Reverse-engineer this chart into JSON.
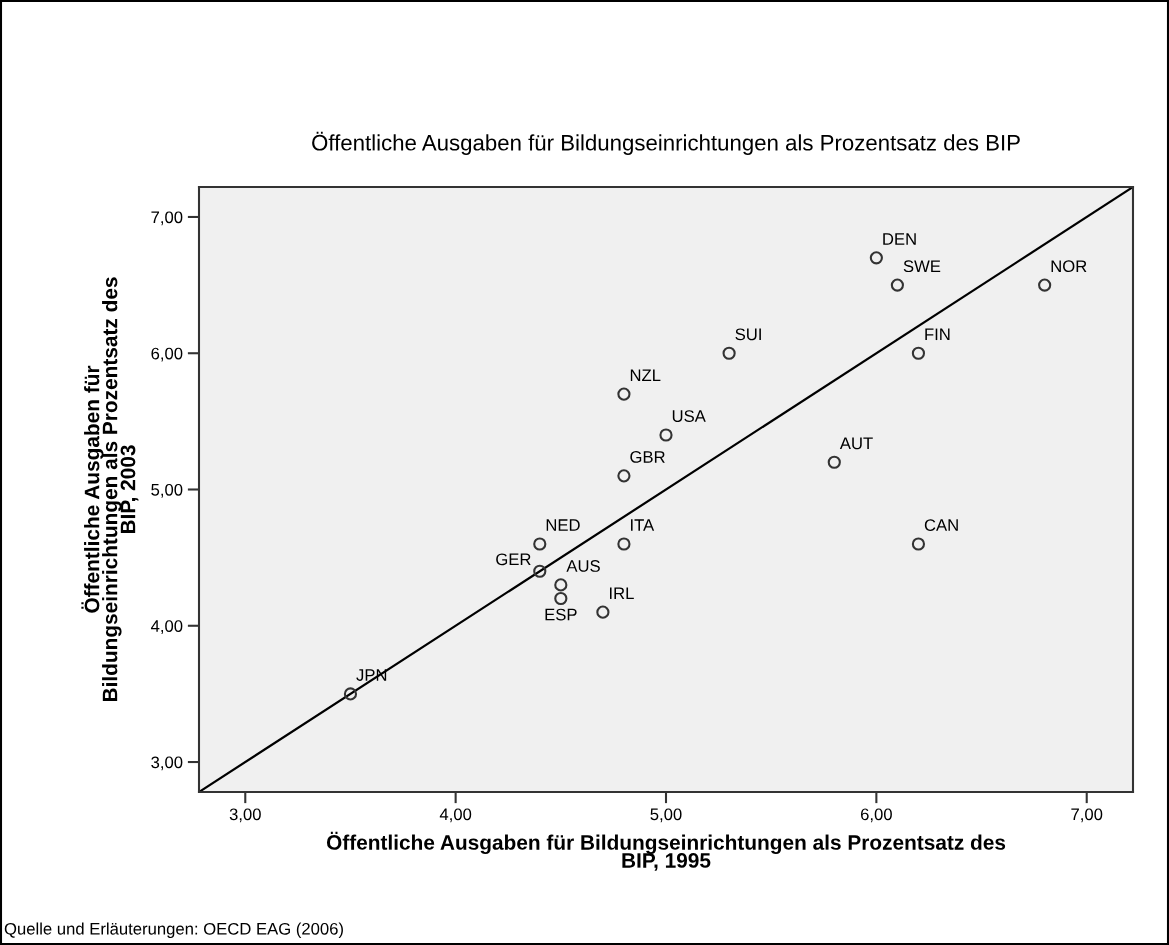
{
  "chart_data": {
    "type": "scatter",
    "title": "Öffentliche Ausgaben für Bildungseinrichtungen als Prozentsatz des BIP",
    "xlabel": "Öffentliche Ausgaben für Bildungseinrichtungen als Prozentsatz des\nBIP, 1995",
    "ylabel": "Öffentliche Ausgaben für\nBildungseinrichtungen als Prozentsatz des\nBIP, 2003",
    "series": [
      {
        "color": "#333333",
        "marker": "circle",
        "x": [
          6.0,
          6.1,
          6.8,
          5.3,
          6.2,
          4.8,
          5.0,
          4.8,
          5.8,
          6.2,
          4.8,
          4.4,
          4.4,
          4.5,
          4.5,
          4.7,
          3.5
        ],
        "values": [
          6.7,
          6.5,
          6.5,
          6.0,
          6.0,
          5.7,
          5.4,
          5.1,
          5.2,
          4.6,
          4.6,
          4.6,
          4.4,
          4.3,
          4.2,
          4.1,
          3.5
        ]
      },
      {
        "type": "line",
        "color": "#000000",
        "line_style": "solid",
        "x": [
          2.78,
          7.22
        ],
        "values": [
          2.78,
          7.22
        ]
      }
    ],
    "annotations": [
      {
        "text": "DEN",
        "x": 6.0,
        "y": 6.7
      },
      {
        "text": "SWE",
        "x": 6.1,
        "y": 6.5
      },
      {
        "text": "NOR",
        "x": 6.8,
        "y": 6.5
      },
      {
        "text": "SUI",
        "x": 5.3,
        "y": 6.0
      },
      {
        "text": "FIN",
        "x": 6.2,
        "y": 6.0
      },
      {
        "text": "NZL",
        "x": 4.8,
        "y": 5.7
      },
      {
        "text": "USA",
        "x": 5.0,
        "y": 5.4
      },
      {
        "text": "GBR",
        "x": 4.8,
        "y": 5.1
      },
      {
        "text": "AUT",
        "x": 5.8,
        "y": 5.2
      },
      {
        "text": "CAN",
        "x": 6.2,
        "y": 4.6
      },
      {
        "text": "ITA",
        "x": 4.8,
        "y": 4.6
      },
      {
        "text": "NED",
        "x": 4.4,
        "y": 4.6
      },
      {
        "text": "GER",
        "x": 4.4,
        "y": 4.4
      },
      {
        "text": "AUS",
        "x": 4.5,
        "y": 4.3
      },
      {
        "text": "ESP",
        "x": 4.5,
        "y": 4.2
      },
      {
        "text": "IRL",
        "x": 4.7,
        "y": 4.1
      },
      {
        "text": "JPN",
        "x": 3.5,
        "y": 3.5
      },
      "Quelle und Erläuterungen: OECD EAG (2006)"
    ],
    "xlim": [
      2.78,
      7.22
    ],
    "ylim": [
      2.78,
      7.22
    ],
    "xticks": [
      {
        "value": 3,
        "label": "3,00"
      },
      {
        "value": 4,
        "label": "4,00"
      },
      {
        "value": 5,
        "label": "5,00"
      },
      {
        "value": 6,
        "label": "6,00"
      },
      {
        "value": 7,
        "label": "7,00"
      }
    ],
    "yticks": [
      {
        "value": 3,
        "label": "3,00"
      },
      {
        "value": 4,
        "label": "4,00"
      },
      {
        "value": 5,
        "label": "5,00"
      },
      {
        "value": 6,
        "label": "6,00"
      },
      {
        "value": 7,
        "label": "7,00"
      }
    ],
    "grid": false,
    "legend": false
  }
}
